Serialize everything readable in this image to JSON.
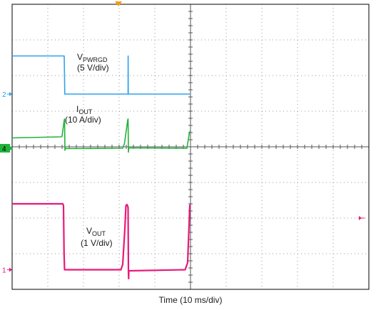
{
  "chart_data": {
    "type": "line",
    "title": "",
    "xlabel": "Time (10 ms/div)",
    "x_unit_per_div": 10,
    "x_divisions": 10,
    "y_divisions": 8,
    "grid": true,
    "trigger_marker_color": "#f39c12",
    "series": [
      {
        "name_main": "V",
        "name_sub": "PWRGD",
        "scale": "(5 V/div)",
        "channel": "2",
        "color": "#2fa3ef",
        "marker_tag": false,
        "points": [
          [
            0,
            6.55
          ],
          [
            14.6,
            6.55
          ],
          [
            14.75,
            5.48
          ],
          [
            32.5,
            5.48
          ],
          [
            32.52,
            6.55
          ],
          [
            32.56,
            5.48
          ],
          [
            50,
            5.48
          ]
        ]
      },
      {
        "name_main": "I",
        "name_sub": "OUT",
        "scale": "(10 A/div)",
        "channel": "4",
        "color": "#22b33a",
        "marker_tag": true,
        "points": [
          [
            0,
            4.25
          ],
          [
            13.8,
            4.28
          ],
          [
            14.0,
            4.3
          ],
          [
            14.6,
            4.75
          ],
          [
            14.7,
            4.78
          ],
          [
            14.8,
            3.9
          ],
          [
            14.9,
            4.0
          ],
          [
            15.0,
            3.95
          ],
          [
            31.0,
            3.96
          ],
          [
            31.5,
            4.1
          ],
          [
            32.4,
            4.75
          ],
          [
            32.5,
            4.78
          ],
          [
            32.6,
            3.85
          ],
          [
            32.7,
            3.97
          ],
          [
            49.0,
            3.96
          ],
          [
            49.7,
            4.4
          ],
          [
            50,
            4.45
          ]
        ]
      },
      {
        "name_main": "V",
        "name_sub": "OUT",
        "scale": "(1 V/div)",
        "channel": "1",
        "color": "#e8197a",
        "marker_tag": false,
        "points": [
          [
            0,
            2.4
          ],
          [
            14.2,
            2.4
          ],
          [
            14.4,
            2.35
          ],
          [
            14.55,
            1.0
          ],
          [
            14.7,
            0.55
          ],
          [
            14.9,
            0.55
          ],
          [
            30.5,
            0.55
          ],
          [
            31.0,
            0.7
          ],
          [
            31.6,
            1.7
          ],
          [
            31.9,
            2.35
          ],
          [
            32.2,
            2.38
          ],
          [
            32.5,
            2.3
          ],
          [
            32.6,
            0.5
          ],
          [
            32.65,
            0.3
          ],
          [
            32.7,
            0.52
          ],
          [
            48.5,
            0.55
          ],
          [
            49.2,
            0.75
          ],
          [
            49.8,
            2.35
          ],
          [
            50,
            2.38
          ]
        ]
      }
    ]
  }
}
